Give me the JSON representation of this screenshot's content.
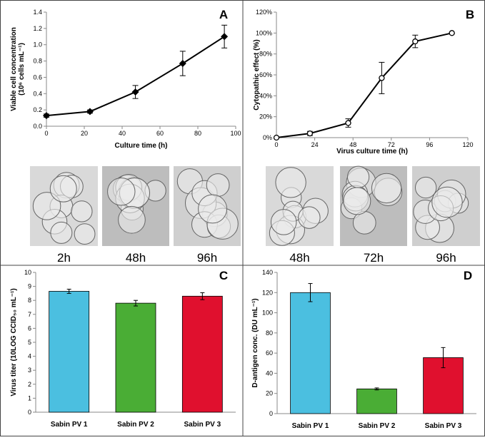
{
  "chart_data": [
    {
      "type": "line",
      "panel_label": "A",
      "xlabel": "Culture time (h)",
      "ylabel": [
        "Viable cell concentration",
        "(10⁶ cells mL⁻¹)"
      ],
      "x": [
        0,
        23,
        47,
        72,
        94
      ],
      "values": [
        0.13,
        0.18,
        0.42,
        0.77,
        1.1
      ],
      "errors": [
        0.02,
        0.02,
        0.08,
        0.15,
        0.14
      ],
      "color": "#000000",
      "marker_filled": true,
      "xlim": [
        0,
        100
      ],
      "xticks": [
        0,
        20,
        40,
        60,
        80,
        100
      ],
      "ylim": [
        0,
        1.4
      ],
      "yticks": [
        {
          "value": 0,
          "label": "0.0"
        },
        {
          "value": 0.2,
          "label": "0.2"
        },
        {
          "value": 0.4,
          "label": "0.4"
        },
        {
          "value": 0.6,
          "label": "0.6"
        },
        {
          "value": 0.8,
          "label": "0.8"
        },
        {
          "value": 1,
          "label": "1.0"
        },
        {
          "value": 1.2,
          "label": "1.2"
        },
        {
          "value": 1.4,
          "label": "1.4"
        }
      ],
      "images": [
        "2h",
        "48h",
        "96h"
      ]
    },
    {
      "type": "line",
      "panel_label": "B",
      "xlabel": "Virus culture time (h)",
      "ylabel": [
        "Cytopathic effect (%)"
      ],
      "x": [
        0,
        21,
        45,
        66,
        87,
        110
      ],
      "values": [
        0,
        4,
        14,
        57,
        92,
        100
      ],
      "errors": [
        0,
        2,
        4,
        15,
        6,
        0
      ],
      "color": "#000000",
      "marker_filled": false,
      "xlim": [
        0,
        120
      ],
      "xticks": [
        0,
        24,
        48,
        72,
        96,
        120
      ],
      "ylim": [
        0,
        120
      ],
      "yticks": [
        {
          "value": 0,
          "label": "0%"
        },
        {
          "value": 20,
          "label": "20%"
        },
        {
          "value": 40,
          "label": "40%"
        },
        {
          "value": 60,
          "label": "60%"
        },
        {
          "value": 80,
          "label": "80%"
        },
        {
          "value": 100,
          "label": "100%"
        },
        {
          "value": 120,
          "label": "120%"
        }
      ],
      "images": [
        "48h",
        "72h",
        "96h"
      ]
    },
    {
      "type": "bar",
      "panel_label": "C",
      "ylabel": [
        "Virus titer (10LOG CCID₅₀ mL⁻¹)"
      ],
      "categories": [
        "Sabin PV 1",
        "Sabin PV 2",
        "Sabin PV 3"
      ],
      "values": [
        8.65,
        7.8,
        8.3
      ],
      "errors": [
        0.15,
        0.2,
        0.25
      ],
      "colors": [
        "#4bbfe0",
        "#4aad35",
        "#e0102e"
      ],
      "ylim": [
        0,
        10
      ],
      "yticks": [
        0,
        1,
        2,
        3,
        4,
        5,
        6,
        7,
        8,
        9,
        10
      ]
    },
    {
      "type": "bar",
      "panel_label": "D",
      "ylabel": [
        "D-antigen conc. (DU mL⁻¹)"
      ],
      "categories": [
        "Sabin PV 1",
        "Sabin PV 2",
        "Sabin PV 3"
      ],
      "values": [
        120,
        24.5,
        55.5
      ],
      "errors": [
        9,
        1,
        10
      ],
      "colors": [
        "#4bbfe0",
        "#4aad35",
        "#e0102e"
      ],
      "ylim": [
        0,
        140
      ],
      "yticks": [
        0,
        20,
        40,
        60,
        80,
        100,
        120,
        140
      ]
    }
  ]
}
